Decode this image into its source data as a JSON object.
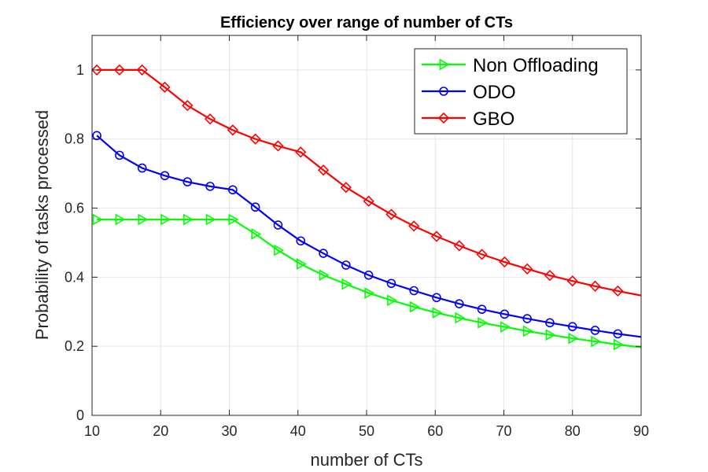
{
  "chart_data": {
    "type": "line",
    "title": "Efficiency over range of number of CTs",
    "xlabel": "number of CTs",
    "ylabel": "Probability of tasks processed",
    "xlim": [
      10,
      90
    ],
    "ylim": [
      0,
      1.1
    ],
    "xticks": [
      10,
      20,
      30,
      40,
      50,
      60,
      70,
      80,
      90
    ],
    "yticks": [
      0,
      0.2,
      0.4,
      0.6,
      0.8,
      1
    ],
    "ytick_labels": [
      "0",
      "0.2",
      "0.4",
      "0.6",
      "0.8",
      "1"
    ],
    "grid": true,
    "legend_position": "top-right",
    "x": [
      10.7,
      14,
      17.3,
      20.6,
      23.9,
      27.2,
      30.5,
      33.8,
      37.1,
      40.4,
      43.7,
      47,
      50.3,
      53.6,
      56.9,
      60.2,
      63.5,
      66.8,
      70.1,
      73.4,
      76.7,
      80,
      83.3,
      86.6,
      90
    ],
    "series": [
      {
        "name": "Non Offloading",
        "color": "#00ff00",
        "marker": "triangle-right",
        "values": [
          0.567,
          0.567,
          0.567,
          0.567,
          0.567,
          0.567,
          0.567,
          0.525,
          0.478,
          0.438,
          0.406,
          0.38,
          0.354,
          0.333,
          0.314,
          0.297,
          0.282,
          0.268,
          0.256,
          0.244,
          0.233,
          0.223,
          0.214,
          0.205,
          0.197
        ]
      },
      {
        "name": "ODO",
        "color": "#0000ff",
        "marker": "circle",
        "values": [
          0.81,
          0.753,
          0.716,
          0.694,
          0.676,
          0.663,
          0.653,
          0.603,
          0.551,
          0.505,
          0.469,
          0.435,
          0.406,
          0.382,
          0.361,
          0.341,
          0.323,
          0.307,
          0.293,
          0.28,
          0.268,
          0.257,
          0.246,
          0.236,
          0.227
        ]
      },
      {
        "name": "GBO",
        "color": "#ff0000",
        "marker": "diamond",
        "values": [
          1.0,
          1.0,
          1.0,
          0.95,
          0.897,
          0.858,
          0.826,
          0.8,
          0.78,
          0.762,
          0.71,
          0.66,
          0.62,
          0.582,
          0.548,
          0.518,
          0.491,
          0.466,
          0.444,
          0.424,
          0.405,
          0.389,
          0.374,
          0.36,
          0.347
        ]
      }
    ]
  }
}
